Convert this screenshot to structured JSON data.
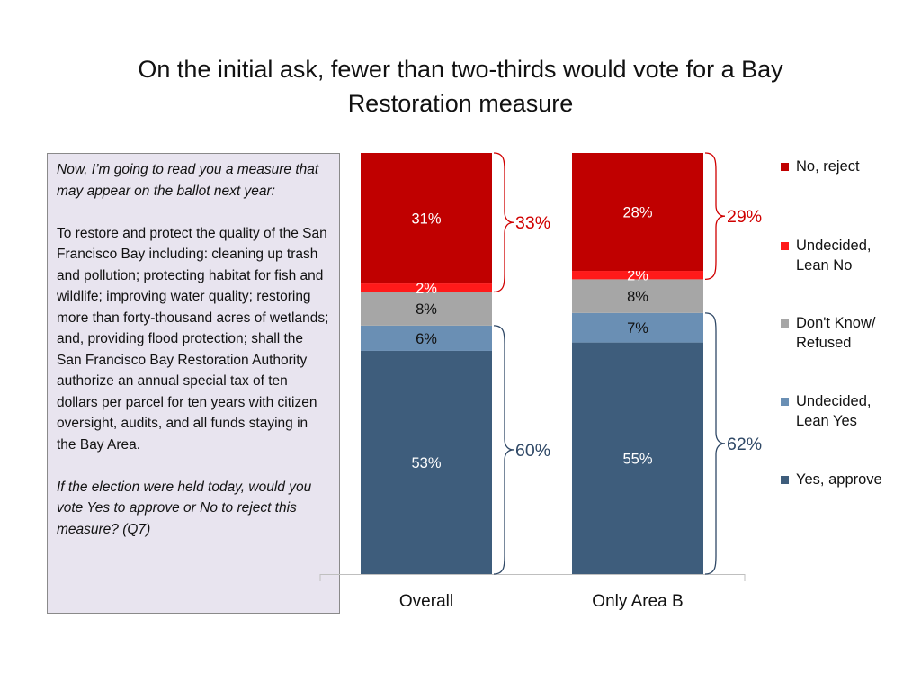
{
  "slide": {
    "title_line1": "On the initial ask, fewer than two-thirds would vote for a Bay",
    "title_line2": "Restoration measure"
  },
  "question": {
    "intro": "Now, I’m going to read you a measure that may appear on the ballot next year:",
    "body": "To restore and protect the quality of the San Francisco Bay including: cleaning up trash and pollution; protecting habitat for fish and wildlife; improving water quality; restoring more than forty-thousand acres of wetlands; and, providing flood protection; shall the San Francisco Bay Restoration Authority authorize an annual special tax of ten dollars per parcel for ten years with citizen oversight, audits, and all funds staying in the Bay Area.",
    "ask": "If the election were held today, would you vote Yes to approve or No to reject this measure?  (Q7)"
  },
  "legend": [
    {
      "label_line1": "No, reject",
      "label_line2": "",
      "color": "#c00000"
    },
    {
      "label_line1": "Undecided,",
      "label_line2": "Lean No",
      "color": "#ff1a1a"
    },
    {
      "label_line1": "Don't Know/",
      "label_line2": "Refused",
      "color": "#a6a6a6"
    },
    {
      "label_line1": "Undecided,",
      "label_line2": "Lean Yes",
      "color": "#6a8fb4"
    },
    {
      "label_line1": "Yes, approve",
      "label_line2": "",
      "color": "#3e5d7c"
    }
  ],
  "chart_data": {
    "type": "bar",
    "stacked": true,
    "percent_stacked": true,
    "categories": [
      "Overall",
      "Only Area B"
    ],
    "series": [
      {
        "name": "Yes, approve",
        "values": [
          53,
          55
        ],
        "labels": [
          "53%",
          "55%"
        ],
        "color": "#3e5d7c",
        "label_color": "#ffffff"
      },
      {
        "name": "Undecided, Lean Yes",
        "values": [
          6,
          7
        ],
        "labels": [
          "6%",
          "7%"
        ],
        "color": "#6a8fb4",
        "label_color": "#111111"
      },
      {
        "name": "Don't Know/ Refused",
        "values": [
          8,
          8
        ],
        "labels": [
          "8%",
          "8%"
        ],
        "color": "#a6a6a6",
        "label_color": "#111111"
      },
      {
        "name": "Undecided, Lean No",
        "values": [
          2,
          2
        ],
        "labels": [
          "2%",
          "2%"
        ],
        "color": "#ff1a1a",
        "label_color": "#ffffff"
      },
      {
        "name": "No, reject",
        "values": [
          31,
          28
        ],
        "labels": [
          "31%",
          "28%"
        ],
        "color": "#c00000",
        "label_color": "#ffffff"
      }
    ],
    "totals": {
      "no": {
        "labels": [
          "33%",
          "29%"
        ],
        "color": "#d00000"
      },
      "yes": {
        "labels": [
          "60%",
          "62%"
        ],
        "color": "#2f4866"
      }
    },
    "ylim": [
      0,
      100
    ],
    "legend_position": "right",
    "grid": false
  }
}
